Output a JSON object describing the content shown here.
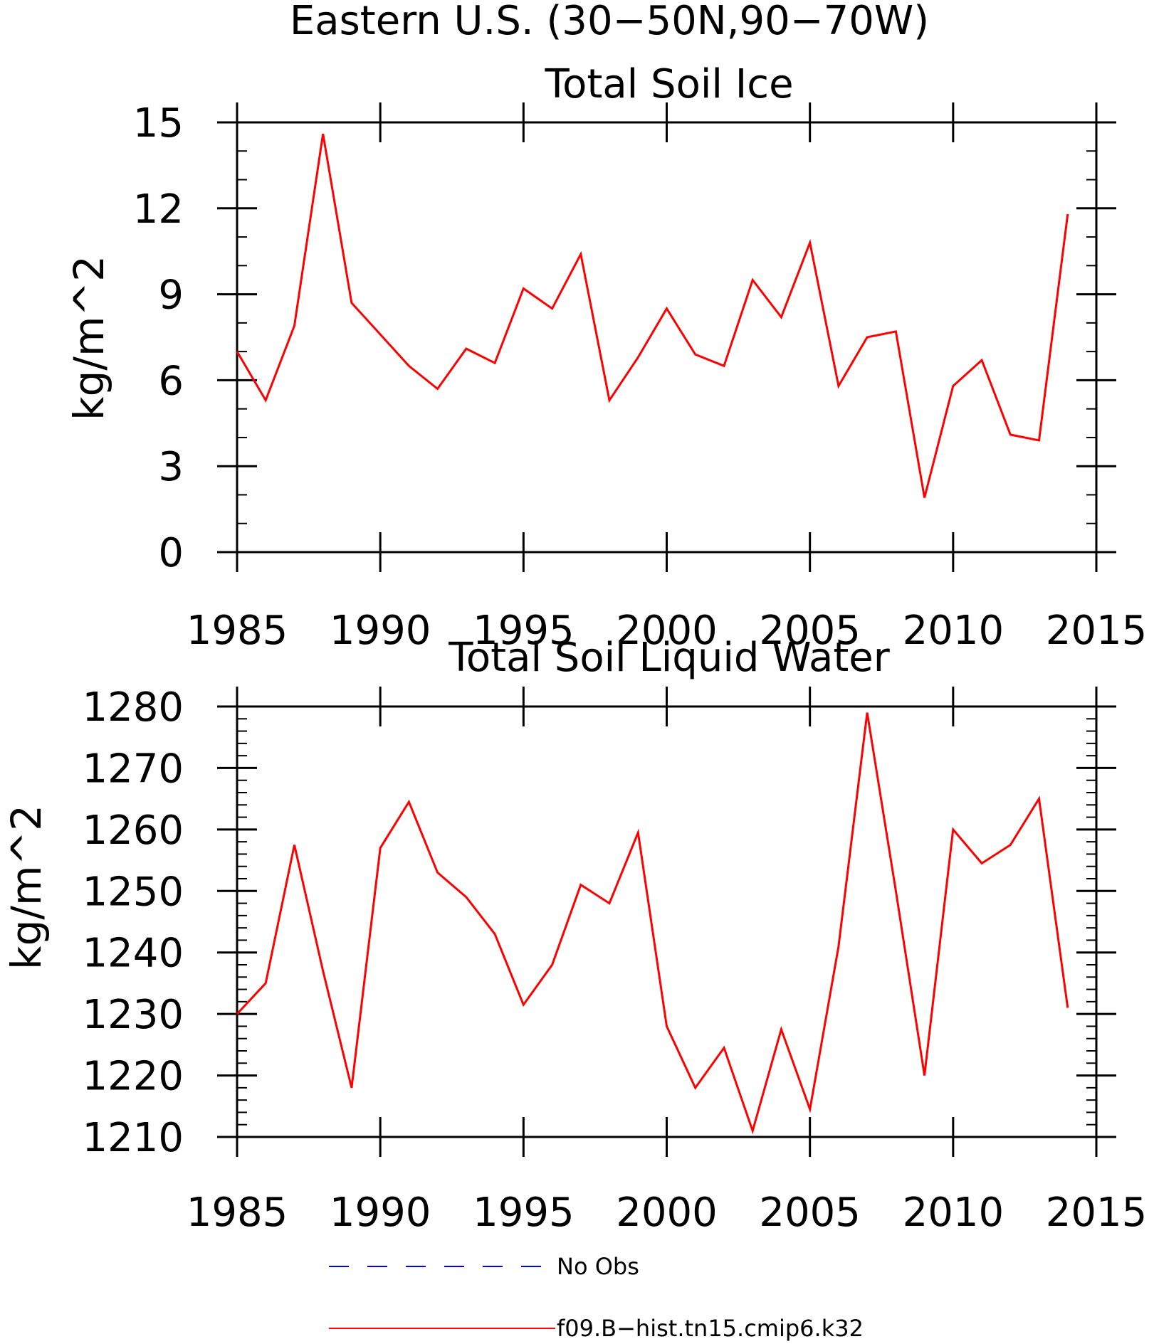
{
  "title": "Eastern U.S. (30−50N,90−70W)",
  "colors": {
    "model_series": "#ff0000",
    "obs_series": "#0000ff",
    "axes": "#000000",
    "background": "#ffffff"
  },
  "chart_data": [
    {
      "type": "line",
      "title": "Total Soil Ice",
      "xlabel": "",
      "ylabel": "kg/m^2",
      "xlim": [
        1985,
        2015
      ],
      "ylim": [
        0,
        15
      ],
      "xticks": [
        1985,
        1990,
        1995,
        2000,
        2005,
        2010,
        2015
      ],
      "xtick_labels": [
        "1985",
        "1990",
        "1995",
        "2000",
        "2005",
        "2010",
        "2015"
      ],
      "yticks": [
        0,
        3,
        6,
        9,
        12,
        15
      ],
      "ytick_labels": [
        "0",
        "3",
        "6",
        "9",
        "12",
        "15"
      ],
      "y_minor_step": 1,
      "grid": false,
      "legend": "below",
      "x": [
        1985,
        1986,
        1987,
        1988,
        1989,
        1990,
        1991,
        1992,
        1993,
        1994,
        1995,
        1996,
        1997,
        1998,
        1999,
        2000,
        2001,
        2002,
        2003,
        2004,
        2005,
        2006,
        2007,
        2008,
        2009,
        2010,
        2011,
        2012,
        2013,
        2014
      ],
      "series": [
        {
          "name": "f09.B−hist.tn15.cmip6.k32",
          "style": "solid",
          "values": [
            7.0,
            5.3,
            7.9,
            14.6,
            8.7,
            7.6,
            6.5,
            5.7,
            7.1,
            6.6,
            9.2,
            8.5,
            10.4,
            5.3,
            6.8,
            8.5,
            6.9,
            6.5,
            9.5,
            8.2,
            10.8,
            5.8,
            7.5,
            7.7,
            1.9,
            5.8,
            6.7,
            4.1,
            3.9,
            11.8
          ]
        }
      ]
    },
    {
      "type": "line",
      "title": "Total Soil Liquid Water",
      "xlabel": "",
      "ylabel": "kg/m^2",
      "xlim": [
        1985,
        2015
      ],
      "ylim": [
        1210,
        1280
      ],
      "xticks": [
        1985,
        1990,
        1995,
        2000,
        2005,
        2010,
        2015
      ],
      "xtick_labels": [
        "1985",
        "1990",
        "1995",
        "2000",
        "2005",
        "2010",
        "2015"
      ],
      "yticks": [
        1210,
        1220,
        1230,
        1240,
        1250,
        1260,
        1270,
        1280
      ],
      "ytick_labels": [
        "1210",
        "1220",
        "1230",
        "1240",
        "1250",
        "1260",
        "1270",
        "1280"
      ],
      "y_minor_step": 2,
      "grid": false,
      "legend": "below",
      "x": [
        1985,
        1986,
        1987,
        1988,
        1989,
        1990,
        1991,
        1992,
        1993,
        1994,
        1995,
        1996,
        1997,
        1998,
        1999,
        2000,
        2001,
        2002,
        2003,
        2004,
        2005,
        2006,
        2007,
        2008,
        2009,
        2010,
        2011,
        2012,
        2013,
        2014
      ],
      "series": [
        {
          "name": "f09.B−hist.tn15.cmip6.k32",
          "style": "solid",
          "values": [
            1230.0,
            1235.0,
            1257.5,
            1237.0,
            1218.0,
            1257.0,
            1264.5,
            1253.0,
            1249.0,
            1243.0,
            1231.5,
            1238.0,
            1251.0,
            1248.0,
            1259.5,
            1228.0,
            1218.0,
            1224.5,
            1211.0,
            1227.5,
            1214.5,
            1241.0,
            1279.0,
            1250.0,
            1220.0,
            1260.0,
            1254.5,
            1257.5,
            1265.0,
            1231.0
          ]
        }
      ]
    }
  ],
  "legend": {
    "entries": [
      {
        "label": "No Obs",
        "style": "dashed",
        "color": "#0000ff"
      },
      {
        "label": "f09.B−hist.tn15.cmip6.k32",
        "style": "solid",
        "color": "#ff0000"
      }
    ]
  }
}
